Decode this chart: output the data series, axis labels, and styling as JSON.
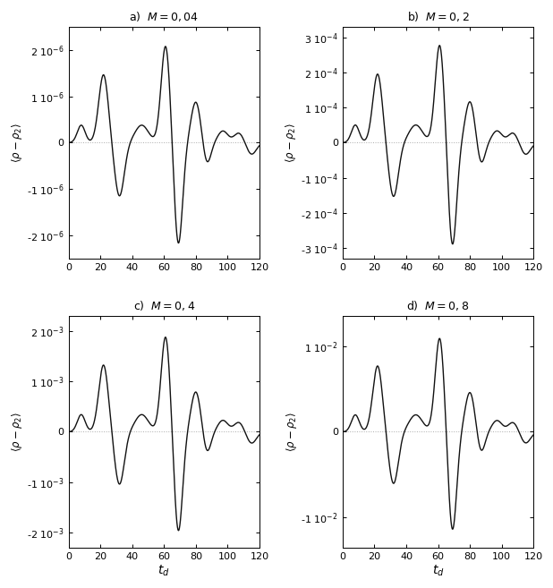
{
  "panels": [
    {
      "title": "a)  $M = 0,04$",
      "ylim": [
        -2.5e-06,
        2.5e-06
      ],
      "yticks": [
        -2e-06,
        -1e-06,
        0,
        1e-06,
        2e-06
      ],
      "amplitude": 2.1e-06,
      "exp": -6
    },
    {
      "title": "b)  $M = 0,2$",
      "ylim": [
        -0.00033,
        0.00033
      ],
      "yticks": [
        -0.0003,
        -0.0002,
        -0.0001,
        0,
        0.0001,
        0.0002,
        0.0003
      ],
      "amplitude": 0.00028,
      "exp": -4
    },
    {
      "title": "c)  $M = 0,4$",
      "ylim": [
        -0.0023,
        0.0023
      ],
      "yticks": [
        -0.002,
        -0.001,
        0,
        0.001,
        0.002
      ],
      "amplitude": 0.0019,
      "exp": -3
    },
    {
      "title": "d)  $M = 0,8$",
      "ylim": [
        -0.0135,
        0.0135
      ],
      "yticks": [
        -0.01,
        0,
        0.01
      ],
      "amplitude": 0.011,
      "exp": -2
    }
  ],
  "xlim": [
    0,
    120
  ],
  "xticks": [
    0,
    20,
    40,
    60,
    80,
    100,
    120
  ],
  "line_color": "#111111",
  "dotted_color": "#aaaaaa",
  "background": "#ffffff"
}
